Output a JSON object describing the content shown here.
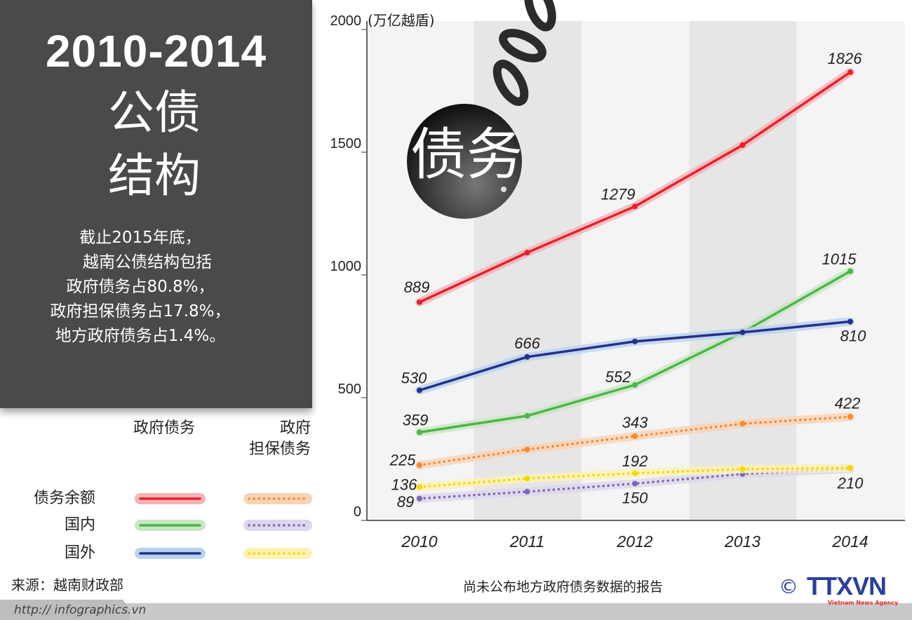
{
  "panel": {
    "title": "2010-2014",
    "subtitle_line1": "公债",
    "subtitle_line2": "结构",
    "desc": [
      "截止2015年底，",
      "越南公债结构包括",
      "政府债务占80.8%，",
      "政府担保债务占17.8%，",
      "地方政府债务占1.4%。"
    ]
  },
  "legend": {
    "col1": "政府债务",
    "col2_line1": "政府",
    "col2_line2": "担保债务",
    "rows": [
      "债务余额",
      "国内",
      "国外"
    ]
  },
  "ball_text": "债务",
  "source": "来源：越南财政部",
  "url": "http:// infographics.vn",
  "note": "尚未公布地方政府债务数据的报告",
  "logo": {
    "copyright": "©",
    "brand": "TTXVN",
    "tagline": "Vietnam News Agency",
    "colors": {
      "blue": "#2a3f9e",
      "red": "#e02b2b"
    }
  },
  "chart_data": {
    "type": "line",
    "title": "",
    "ylabel": "(万亿越盾)",
    "xlabel": "",
    "x": [
      "2010",
      "2011",
      "2012",
      "2013",
      "2014"
    ],
    "ylim": [
      0,
      2000
    ],
    "yticks": [
      0,
      500,
      1000,
      1500,
      2000
    ],
    "grid": false,
    "shaded_years": [
      "2011",
      "2013"
    ],
    "series": [
      {
        "name": "政府债务 债务余额",
        "color": "#e8202a",
        "halo": "#f4b3b6",
        "style": "solid",
        "values": [
          889,
          1091,
          1279,
          1529,
          1826
        ],
        "labels": [
          "889",
          "",
          "1279",
          "",
          "1826"
        ]
      },
      {
        "name": "政府债务 国内",
        "color": "#4cb648",
        "halo": "#c9e6c3",
        "style": "solid",
        "values": [
          359,
          426,
          552,
          766,
          1015
        ],
        "labels": [
          "359",
          "",
          "552",
          "",
          "1015"
        ]
      },
      {
        "name": "政府债务 国外",
        "color": "#262f8c",
        "halo": "#b8d3ee",
        "style": "solid",
        "values": [
          530,
          666,
          729,
          766,
          810
        ],
        "labels": [
          "530",
          "666",
          "",
          "",
          "810"
        ]
      },
      {
        "name": "政府担保债务 债务余额",
        "color": "#f58a2e",
        "halo": "#f9d3b5",
        "style": "dotted",
        "values": [
          225,
          289,
          343,
          394,
          422
        ],
        "labels": [
          "225",
          "",
          "343",
          "",
          "422"
        ]
      },
      {
        "name": "政府担保债务 国内",
        "color": "#7b68b8",
        "halo": "#ddd6ec",
        "style": "dotted",
        "values": [
          89,
          117,
          150,
          189,
          210
        ],
        "labels": [
          "89",
          "",
          "150",
          "",
          "210"
        ]
      },
      {
        "name": "政府担保债务 国外",
        "color": "#f5d800",
        "halo": "#fbf2b3",
        "style": "dotted",
        "values": [
          136,
          171,
          192,
          209,
          214
        ],
        "labels": [
          "136",
          "",
          "192",
          "",
          ""
        ]
      }
    ]
  }
}
